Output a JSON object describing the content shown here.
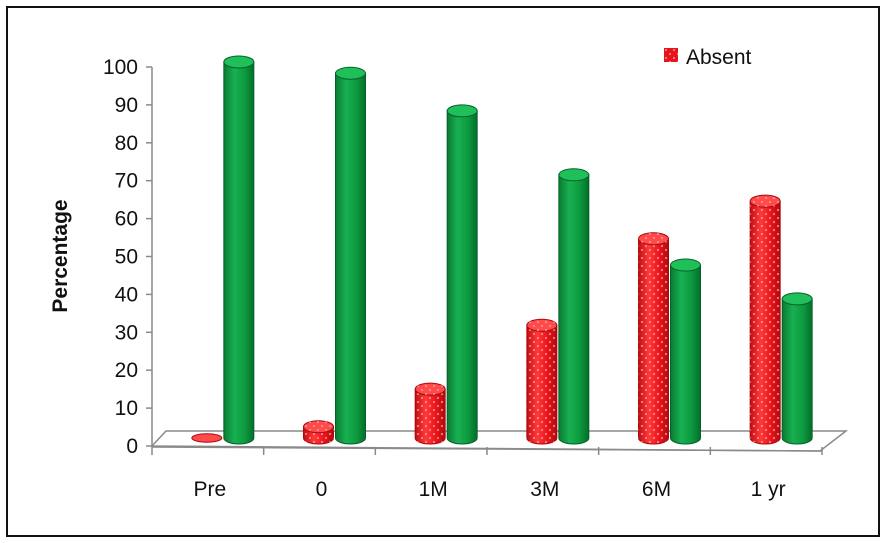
{
  "chart_data": {
    "type": "bar",
    "title": "",
    "xlabel": "",
    "ylabel": "Percentage",
    "categories": [
      "Pre",
      "0",
      "1M",
      "3M",
      "6M",
      "1 yr"
    ],
    "ylim": [
      0,
      100
    ],
    "yticks": [
      0,
      10,
      20,
      30,
      40,
      50,
      60,
      70,
      80,
      90,
      100
    ],
    "series": [
      {
        "name": "Absent",
        "values": [
          0,
          3,
          13,
          30,
          53,
          63
        ],
        "color": "#e8141b",
        "pattern": "dotted"
      },
      {
        "name": "",
        "values": [
          100,
          97,
          87,
          70,
          46,
          37
        ],
        "color": "#0c9a3f"
      }
    ],
    "legend_position": "top-right",
    "style": "3d-cylinder",
    "grid": false
  }
}
